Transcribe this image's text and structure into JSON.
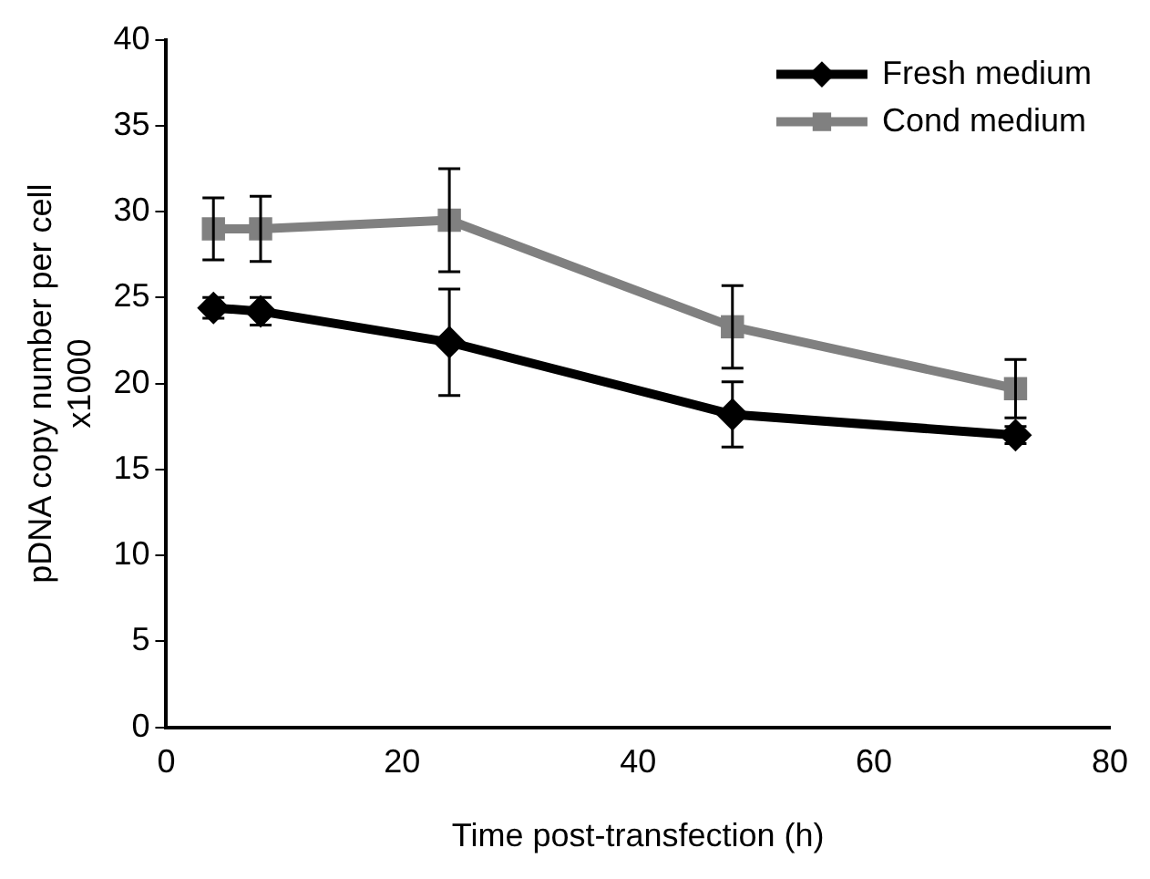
{
  "chart_data": {
    "type": "line",
    "xlabel": "Time post-transfection (h)",
    "ylabel": "pDNA copy number per cell x1000",
    "x": [
      4,
      8,
      24,
      48,
      72
    ],
    "xlim": [
      0,
      80
    ],
    "xticks": [
      0,
      20,
      40,
      60,
      80
    ],
    "ylim": [
      0,
      40
    ],
    "yticks": [
      0,
      5,
      10,
      15,
      20,
      25,
      30,
      35,
      40
    ],
    "grid": false,
    "legend": "top right",
    "line_style": "solid",
    "series": [
      {
        "name": "Fresh medium",
        "color": "#000000",
        "marker": "diamond",
        "values": [
          24.4,
          24.2,
          22.4,
          18.2,
          17.0
        ],
        "errors": [
          0.6,
          0.8,
          3.1,
          1.9,
          0.5
        ]
      },
      {
        "name": "Cond medium",
        "color": "#808080",
        "marker": "square",
        "values": [
          29.0,
          29.0,
          29.5,
          23.3,
          19.7
        ],
        "errors": [
          1.8,
          1.9,
          3.0,
          2.4,
          1.7
        ]
      }
    ]
  }
}
